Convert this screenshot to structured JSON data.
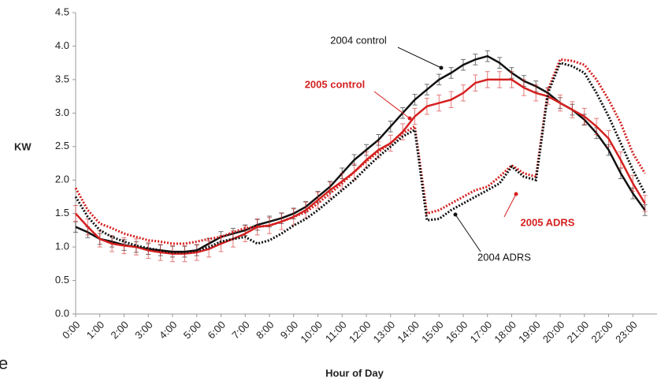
{
  "chart_data": {
    "type": "line",
    "y_label": "KW",
    "x_label": "Hour of Day",
    "stray_text": "e",
    "categories": [
      "0:00",
      null,
      "1:00",
      null,
      "2:00",
      null,
      "3:00",
      null,
      "4:00",
      null,
      "5:00",
      null,
      "6:00",
      null,
      "7:00",
      null,
      "8:00",
      null,
      "9:00",
      null,
      "10:00",
      null,
      "11:00",
      null,
      "12:00",
      null,
      "13:00",
      null,
      "14:00",
      null,
      "15:00",
      null,
      "16:00",
      null,
      "17:00",
      null,
      "18:00",
      null,
      "19:00",
      null,
      "20:00",
      null,
      "21:00",
      null,
      "22:00",
      null,
      "23:00",
      null
    ],
    "ylim": [
      0,
      4.5
    ],
    "yticks": [
      {
        "value": 0,
        "label": "0.0"
      },
      0.5,
      {
        "value": 1,
        "label": "1.0"
      },
      1.5,
      {
        "value": 2,
        "label": "2.0"
      },
      2.5,
      {
        "value": 3,
        "label": "3.0"
      },
      3.5,
      {
        "value": 4,
        "label": "4.0"
      },
      4.5
    ],
    "grid": false,
    "series": [
      {
        "name": "2004 control",
        "color": "#111111",
        "style": "solid",
        "values": [
          1.3,
          1.22,
          1.12,
          1.08,
          1.03,
          1.0,
          0.97,
          0.95,
          0.93,
          0.93,
          0.95,
          1.05,
          1.15,
          1.2,
          1.25,
          1.33,
          1.38,
          1.43,
          1.5,
          1.6,
          1.75,
          1.9,
          2.1,
          2.3,
          2.45,
          2.6,
          2.8,
          3.0,
          3.2,
          3.35,
          3.5,
          3.6,
          3.72,
          3.8,
          3.85,
          3.75,
          3.6,
          3.48,
          3.4,
          3.3,
          3.15,
          3.05,
          2.9,
          2.7,
          2.45,
          2.1,
          1.8,
          1.55
        ],
        "errors": [
          0.08,
          0.08,
          0.08,
          0.08,
          0.08,
          0.08,
          0.08,
          0.08,
          0.08,
          0.08,
          0.08,
          0.08,
          0.08,
          0.08,
          0.08,
          0.08,
          0.08,
          0.08,
          0.08,
          0.08,
          0.08,
          0.08,
          0.08,
          0.08,
          0.08,
          0.08,
          0.08,
          0.08,
          0.08,
          0.08,
          0.08,
          0.08,
          0.08,
          0.08,
          0.08,
          0.08,
          0.08,
          0.08,
          0.08,
          0.08,
          0.08,
          0.08,
          0.08,
          0.08,
          0.08,
          0.08,
          0.08,
          0.08
        ]
      },
      {
        "name": "2005 control",
        "color": "#d42020",
        "style": "solid",
        "values": [
          1.5,
          1.3,
          1.12,
          1.05,
          1.02,
          1.0,
          0.95,
          0.92,
          0.9,
          0.9,
          0.92,
          0.97,
          1.05,
          1.12,
          1.2,
          1.3,
          1.32,
          1.38,
          1.45,
          1.55,
          1.7,
          1.85,
          1.98,
          2.12,
          2.3,
          2.45,
          2.55,
          2.72,
          2.95,
          3.1,
          3.15,
          3.2,
          3.3,
          3.45,
          3.5,
          3.5,
          3.5,
          3.38,
          3.3,
          3.25,
          3.15,
          3.05,
          2.95,
          2.8,
          2.62,
          2.3,
          1.95,
          1.65
        ],
        "errors": [
          0.12,
          0.12,
          0.12,
          0.12,
          0.12,
          0.12,
          0.12,
          0.12,
          0.12,
          0.12,
          0.12,
          0.12,
          0.12,
          0.12,
          0.12,
          0.12,
          0.12,
          0.12,
          0.12,
          0.12,
          0.12,
          0.12,
          0.12,
          0.12,
          0.12,
          0.12,
          0.12,
          0.12,
          0.12,
          0.12,
          0.12,
          0.12,
          0.12,
          0.12,
          0.12,
          0.12,
          0.12,
          0.12,
          0.12,
          0.12,
          0.12,
          0.12,
          0.12,
          0.12,
          0.12,
          0.12,
          0.12,
          0.12
        ]
      },
      {
        "name": "2005 ADRS",
        "color": "#d42020",
        "style": "dotted",
        "values": [
          1.88,
          1.55,
          1.35,
          1.28,
          1.2,
          1.15,
          1.1,
          1.08,
          1.05,
          1.05,
          1.08,
          1.12,
          1.15,
          1.22,
          1.28,
          1.3,
          1.32,
          1.38,
          1.45,
          1.52,
          1.65,
          1.8,
          1.95,
          2.12,
          2.28,
          2.42,
          2.55,
          2.7,
          2.8,
          1.5,
          1.55,
          1.65,
          1.75,
          1.85,
          1.9,
          2.05,
          2.22,
          2.1,
          2.05,
          3.35,
          3.8,
          3.78,
          3.72,
          3.5,
          3.2,
          2.85,
          2.4,
          2.1
        ]
      },
      {
        "name": "2004 ADRS",
        "color": "#111111",
        "style": "dotted",
        "values": [
          1.75,
          1.45,
          1.25,
          1.15,
          1.08,
          1.02,
          0.98,
          0.95,
          0.92,
          0.92,
          0.95,
          1.0,
          1.08,
          1.12,
          1.15,
          1.05,
          1.1,
          1.2,
          1.32,
          1.42,
          1.55,
          1.7,
          1.85,
          2.0,
          2.18,
          2.35,
          2.5,
          2.65,
          2.75,
          1.4,
          1.42,
          1.55,
          1.65,
          1.75,
          1.85,
          1.95,
          2.2,
          2.05,
          2.0,
          3.3,
          3.75,
          3.7,
          3.6,
          3.3,
          2.95,
          2.55,
          2.15,
          1.8
        ]
      }
    ]
  }
}
